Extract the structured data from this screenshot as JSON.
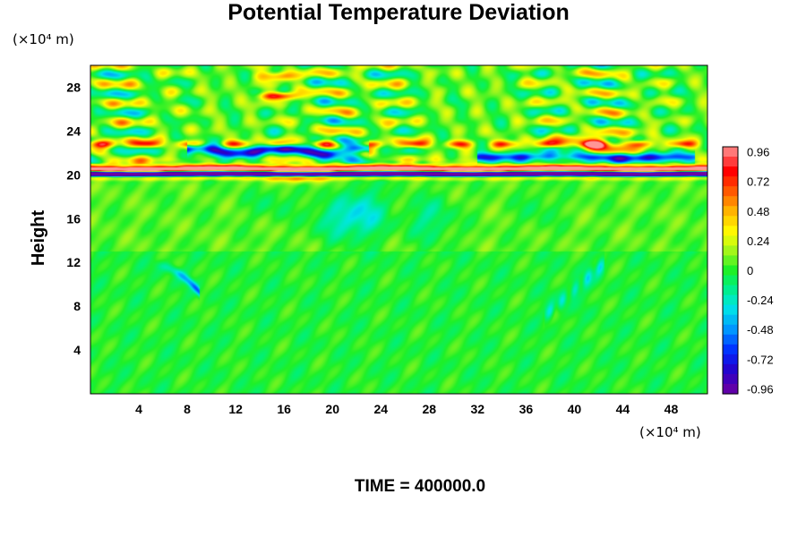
{
  "chart_data": {
    "type": "heatmap",
    "title": "Potential Temperature Deviation",
    "ylabel": "Height",
    "xunit": "(×10⁴ m)",
    "yunit": "(×10⁴ m)",
    "xlim": [
      0,
      51
    ],
    "ylim": [
      0,
      30
    ],
    "xticks": [
      "4",
      "8",
      "12",
      "16",
      "20",
      "24",
      "28",
      "32",
      "36",
      "40",
      "44",
      "48"
    ],
    "yticks": [
      "4",
      "8",
      "12",
      "16",
      "20",
      "24",
      "28"
    ],
    "xtick_values": [
      4,
      8,
      12,
      16,
      20,
      24,
      28,
      32,
      36,
      40,
      44,
      48
    ],
    "ytick_values": [
      4,
      8,
      12,
      16,
      20,
      24,
      28
    ],
    "colorbar": {
      "min": -1.0,
      "max": 1.0,
      "labels": [
        "0.96",
        "0.72",
        "0.48",
        "0.24",
        "0",
        "-0.24",
        "-0.48",
        "-0.72",
        "-0.96"
      ],
      "label_values": [
        0.96,
        0.72,
        0.48,
        0.24,
        0,
        -0.24,
        -0.48,
        -0.72,
        -0.96
      ]
    },
    "footer": "TIME = 400000.0"
  }
}
